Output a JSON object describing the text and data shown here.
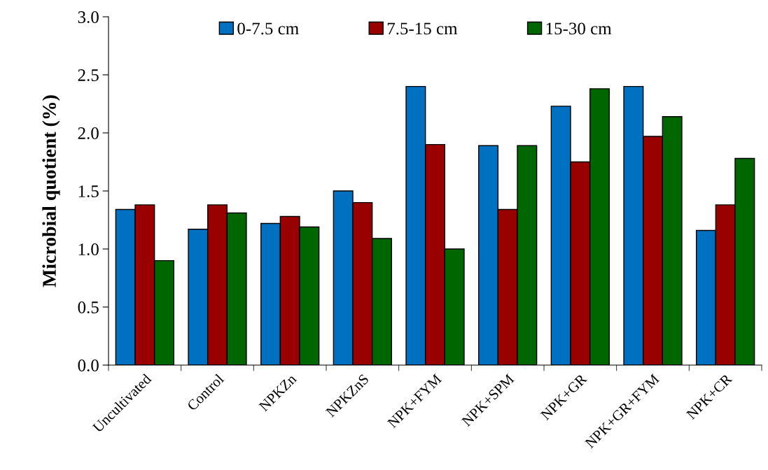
{
  "chart_data": {
    "type": "bar",
    "ylabel": "Microbial quotient (%)",
    "categories": [
      "Uncultivated",
      "Control",
      "NPKZn",
      "NPKZnS",
      "NPK+FYM",
      "NPK+SPM",
      "NPK+GR",
      "NPK+GR+FYM",
      "NPK+CR"
    ],
    "series": [
      {
        "name": "0-7.5 cm",
        "color": "#0070c0",
        "values": [
          1.34,
          1.17,
          1.22,
          1.5,
          2.4,
          1.89,
          2.23,
          2.4,
          1.16
        ]
      },
      {
        "name": "7.5-15 cm",
        "color": "#990000",
        "values": [
          1.38,
          1.38,
          1.28,
          1.4,
          1.9,
          1.34,
          1.75,
          1.97,
          1.38
        ]
      },
      {
        "name": "15-30 cm",
        "color": "#006600",
        "values": [
          0.9,
          1.31,
          1.19,
          1.09,
          1.0,
          1.89,
          2.38,
          2.14,
          1.78
        ]
      }
    ],
    "ylim": [
      0,
      3.0
    ],
    "yticks": [
      {
        "value": 0,
        "label": "0.0"
      },
      {
        "value": 0.5,
        "label": "0.5"
      },
      {
        "value": 1.0,
        "label": "1.0"
      },
      {
        "value": 1.5,
        "label": "1.5"
      },
      {
        "value": 2.0,
        "label": "2.0"
      },
      {
        "value": 2.5,
        "label": "2.5"
      },
      {
        "value": 3.0,
        "label": "3.0"
      }
    ],
    "grid": false,
    "legend": "top"
  }
}
